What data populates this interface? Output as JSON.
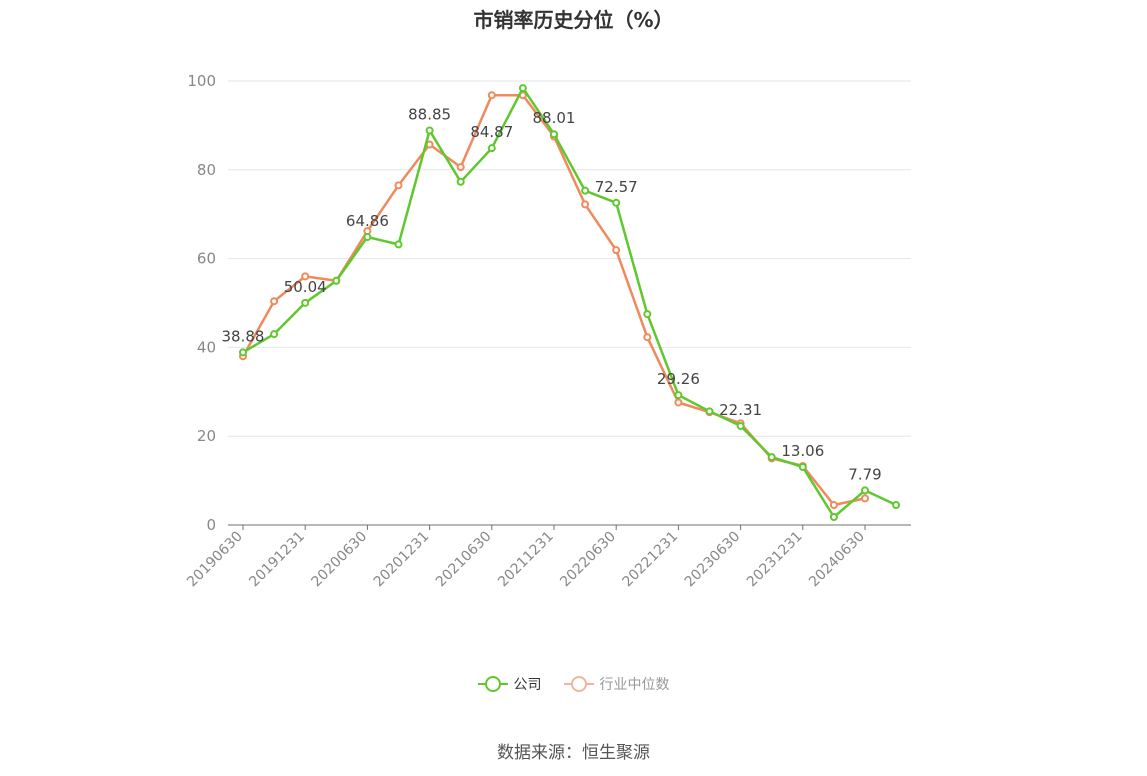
{
  "chart_data": {
    "type": "line",
    "title": "市销率历史分位（%）",
    "x": [
      "20190630",
      "20190930",
      "20191231",
      "20200331",
      "20200630",
      "20200930",
      "20201231",
      "20210331",
      "20210630",
      "20210930",
      "20211231",
      "20220331",
      "20220630",
      "20220930",
      "20221231",
      "20230331",
      "20230630",
      "20230930",
      "20231231",
      "20240331",
      "20240630",
      "20240930"
    ],
    "x_tick_labels": [
      "20190630",
      "20191231",
      "20200630",
      "20201231",
      "20210630",
      "20211231",
      "20220630",
      "20221231",
      "20230630",
      "20231231",
      "20240630"
    ],
    "ylim": [
      0,
      100
    ],
    "y_ticks": [
      0,
      20,
      40,
      60,
      80,
      100
    ],
    "grid": true,
    "legend_position": "bottom",
    "series": [
      {
        "name": "公司",
        "color": "#5ec82d",
        "values": [
          38.88,
          43.0,
          50.04,
          55.0,
          64.86,
          63.2,
          88.85,
          77.3,
          84.87,
          98.4,
          88.01,
          75.3,
          72.57,
          47.5,
          29.26,
          25.6,
          22.31,
          15.3,
          13.06,
          1.8,
          7.79,
          4.5
        ],
        "labels": [
          {
            "index": 0,
            "text": "38.88"
          },
          {
            "index": 2,
            "text": "50.04"
          },
          {
            "index": 4,
            "text": "64.86"
          },
          {
            "index": 6,
            "text": "88.85"
          },
          {
            "index": 8,
            "text": "84.87"
          },
          {
            "index": 10,
            "text": "88.01"
          },
          {
            "index": 12,
            "text": "72.57"
          },
          {
            "index": 14,
            "text": "29.26"
          },
          {
            "index": 16,
            "text": "22.31"
          },
          {
            "index": 18,
            "text": "13.06"
          },
          {
            "index": 20,
            "text": "7.79"
          }
        ]
      },
      {
        "name": "行业中位数",
        "color": "#f0895c",
        "values": [
          38.0,
          50.4,
          56.0,
          55.0,
          66.2,
          76.5,
          85.7,
          80.6,
          96.8,
          96.8,
          87.5,
          72.2,
          61.9,
          42.3,
          27.6,
          25.4,
          22.9,
          15.0,
          13.3,
          4.5,
          6.0,
          null
        ]
      }
    ],
    "source": "数据来源：恒生聚源"
  },
  "legend": {
    "company_label": "公司",
    "industry_label": "行业中位数",
    "company_color": "#5ec82d",
    "industry_color": "#f4b49c"
  }
}
